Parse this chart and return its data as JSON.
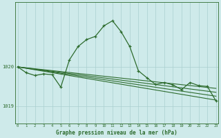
{
  "background_color": "#ceeaea",
  "plot_bg_color": "#ceeaea",
  "line_color": "#2d6b2d",
  "grid_color": "#aacfcf",
  "xlabel": "Graphe pression niveau de la mer (hPa)",
  "xlabel_color": "#2d6b2d",
  "ylabel_ticks": [
    1019,
    1020
  ],
  "ylim": [
    1018.55,
    1021.65
  ],
  "xlim": [
    -0.3,
    23.3
  ],
  "xticks": [
    0,
    1,
    2,
    3,
    4,
    5,
    6,
    7,
    8,
    9,
    10,
    11,
    12,
    13,
    14,
    15,
    16,
    17,
    18,
    19,
    20,
    21,
    22,
    23
  ],
  "straight_lines": [
    {
      "x0": 0,
      "y0": 1020.0,
      "x1": 23,
      "y1": 1019.15
    },
    {
      "x0": 0,
      "y0": 1020.0,
      "x1": 23,
      "y1": 1019.25
    },
    {
      "x0": 0,
      "y0": 1020.0,
      "x1": 23,
      "y1": 1019.35
    },
    {
      "x0": 0,
      "y0": 1020.0,
      "x1": 23,
      "y1": 1019.45
    }
  ],
  "main_series_x": [
    0,
    1,
    2,
    3,
    4,
    5,
    6,
    7,
    8,
    9,
    10,
    11,
    12,
    13,
    14,
    15,
    16,
    17,
    18,
    19,
    20,
    21,
    22,
    23
  ],
  "main_series_y": [
    1020.0,
    1019.85,
    1019.78,
    1019.82,
    1019.8,
    1019.48,
    1020.18,
    1020.52,
    1020.7,
    1020.78,
    1021.05,
    1021.18,
    1020.9,
    1020.52,
    1019.9,
    1019.72,
    1019.55,
    1019.6,
    1019.54,
    1019.42,
    1019.6,
    1019.52,
    1019.5,
    1019.13
  ]
}
